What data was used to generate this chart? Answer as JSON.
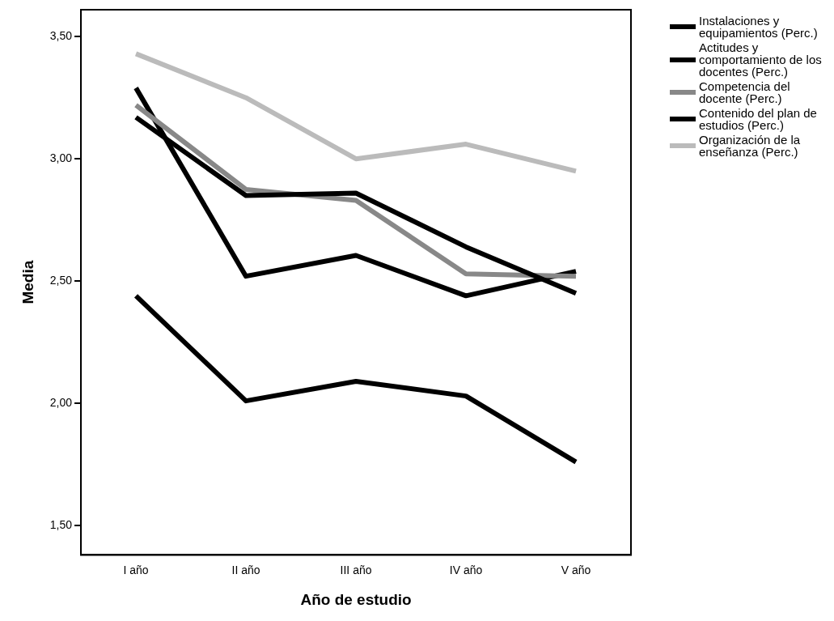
{
  "chart_data": {
    "type": "line",
    "xlabel": "Año de estudio",
    "ylabel": "Media",
    "categories": [
      "I año",
      "II año",
      "III año",
      "IV año",
      "V año"
    ],
    "series": [
      {
        "name": "Instalaciones y equipamientos (Perc.)",
        "color": "#000000",
        "values": [
          2.44,
          2.01,
          2.09,
          2.03,
          1.76
        ]
      },
      {
        "name": "Actitudes y comportamiento de los docentes (Perc.)",
        "color": "#000000",
        "values": [
          3.17,
          2.85,
          2.86,
          2.64,
          2.45
        ]
      },
      {
        "name": "Competencia del docente (Perc.)",
        "color": "#888888",
        "values": [
          3.22,
          2.875,
          2.83,
          2.53,
          2.52
        ]
      },
      {
        "name": "Contenido del plan de estudios (Perc.)",
        "color": "#000000",
        "values": [
          3.29,
          2.52,
          2.605,
          2.44,
          2.54
        ]
      },
      {
        "name": "Organización de la enseñanza (Perc.)",
        "color": "#bbbbbb",
        "values": [
          3.43,
          3.25,
          3.0,
          3.06,
          2.95
        ]
      }
    ],
    "ylim": [
      1.38,
      3.61
    ],
    "yticks": [
      {
        "value": 1.5,
        "label": "1,50"
      },
      {
        "value": 2,
        "label": "2,00"
      },
      {
        "value": 2.5,
        "label": "2,50"
      },
      {
        "value": 3,
        "label": "3,00"
      },
      {
        "value": 3.5,
        "label": "3,50"
      }
    ],
    "grid": false,
    "legend": "top right",
    "marker": "none",
    "line_style": "solid"
  }
}
